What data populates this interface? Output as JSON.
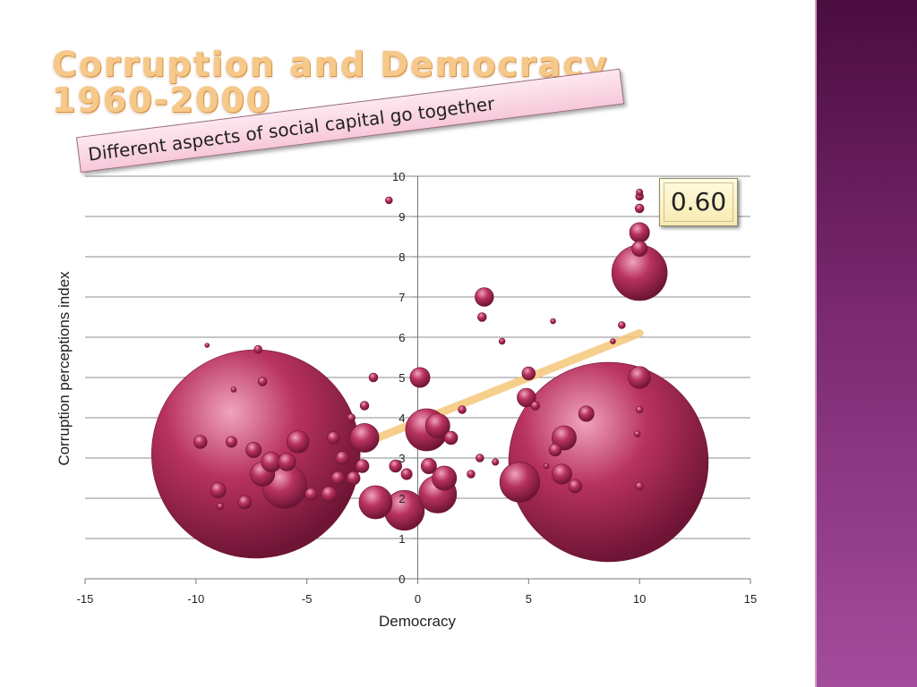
{
  "slide": {
    "title_line1": "Corruption and Democracy",
    "title_line2": "1960-2000",
    "banner": "Different aspects of social capital go together",
    "correlation": "0.60"
  },
  "colors": {
    "bubble": "#b8325f",
    "bubble_dark": "#6e1435",
    "bubble_light": "#f0a3bf",
    "trend": "#f5c77a",
    "sidebar": "#7a2870",
    "title": "#f6c98a"
  },
  "chart_data": {
    "type": "scatter",
    "title": "",
    "xlabel": "Democracy",
    "ylabel": "Corruption perceptions index",
    "xlim": [
      -15,
      15
    ],
    "ylim": [
      0,
      10
    ],
    "x_ticks": [
      -15,
      -10,
      -5,
      0,
      5,
      10,
      15
    ],
    "y_ticks": [
      0,
      1,
      2,
      3,
      4,
      5,
      6,
      7,
      8,
      9,
      10
    ],
    "grid": "horizontal",
    "trendline": {
      "x": [
        -10,
        10
      ],
      "y": [
        1.7,
        6.1
      ]
    },
    "points": [
      {
        "x": -7.3,
        "y": 3.1,
        "r": 4.7
      },
      {
        "x": 8.6,
        "y": 2.9,
        "r": 4.5
      },
      {
        "x": 10.0,
        "y": 7.6,
        "r": 1.25
      },
      {
        "x": -6.0,
        "y": 2.3,
        "r": 1.0
      },
      {
        "x": -1.9,
        "y": 1.9,
        "r": 0.75
      },
      {
        "x": -0.6,
        "y": 1.7,
        "r": 0.9
      },
      {
        "x": 0.9,
        "y": 2.1,
        "r": 0.85
      },
      {
        "x": 4.6,
        "y": 2.4,
        "r": 0.9
      },
      {
        "x": 0.4,
        "y": 3.7,
        "r": 0.95
      },
      {
        "x": -2.4,
        "y": 3.5,
        "r": 0.65
      },
      {
        "x": -5.4,
        "y": 3.4,
        "r": 0.5
      },
      {
        "x": -7.0,
        "y": 2.6,
        "r": 0.55
      },
      {
        "x": -6.6,
        "y": 2.9,
        "r": 0.45
      },
      {
        "x": -5.9,
        "y": 2.9,
        "r": 0.4
      },
      {
        "x": 6.6,
        "y": 3.5,
        "r": 0.55
      },
      {
        "x": 6.5,
        "y": 2.6,
        "r": 0.45
      },
      {
        "x": 7.6,
        "y": 4.1,
        "r": 0.35
      },
      {
        "x": 10.0,
        "y": 5.0,
        "r": 0.5
      },
      {
        "x": 10.0,
        "y": 8.6,
        "r": 0.45
      },
      {
        "x": 10.0,
        "y": 8.2,
        "r": 0.35
      },
      {
        "x": 10.0,
        "y": 9.2,
        "r": 0.2
      },
      {
        "x": 10.0,
        "y": 9.5,
        "r": 0.18
      },
      {
        "x": 10.0,
        "y": 9.6,
        "r": 0.15
      },
      {
        "x": 3.0,
        "y": 7.0,
        "r": 0.42
      },
      {
        "x": 2.9,
        "y": 6.5,
        "r": 0.2
      },
      {
        "x": 0.1,
        "y": 5.0,
        "r": 0.45
      },
      {
        "x": 5.0,
        "y": 5.1,
        "r": 0.3
      },
      {
        "x": 4.9,
        "y": 4.5,
        "r": 0.42
      },
      {
        "x": 5.3,
        "y": 4.3,
        "r": 0.2
      },
      {
        "x": 1.2,
        "y": 2.5,
        "r": 0.55
      },
      {
        "x": 0.5,
        "y": 2.8,
        "r": 0.35
      },
      {
        "x": 0.9,
        "y": 3.8,
        "r": 0.55
      },
      {
        "x": 1.5,
        "y": 3.5,
        "r": 0.3
      },
      {
        "x": -9.8,
        "y": 3.4,
        "r": 0.3
      },
      {
        "x": -8.4,
        "y": 3.4,
        "r": 0.25
      },
      {
        "x": -9.0,
        "y": 2.2,
        "r": 0.35
      },
      {
        "x": -7.8,
        "y": 1.9,
        "r": 0.3
      },
      {
        "x": -7.4,
        "y": 3.2,
        "r": 0.35
      },
      {
        "x": -7.0,
        "y": 4.9,
        "r": 0.2
      },
      {
        "x": -7.2,
        "y": 5.7,
        "r": 0.18
      },
      {
        "x": -8.9,
        "y": 1.8,
        "r": 0.15
      },
      {
        "x": -4.0,
        "y": 2.1,
        "r": 0.35
      },
      {
        "x": -3.6,
        "y": 2.5,
        "r": 0.3
      },
      {
        "x": -3.8,
        "y": 3.5,
        "r": 0.28
      },
      {
        "x": -3.4,
        "y": 3.0,
        "r": 0.3
      },
      {
        "x": -2.9,
        "y": 2.5,
        "r": 0.3
      },
      {
        "x": -2.5,
        "y": 2.8,
        "r": 0.3
      },
      {
        "x": -4.8,
        "y": 2.1,
        "r": 0.28
      },
      {
        "x": -3.0,
        "y": 4.0,
        "r": 0.18
      },
      {
        "x": -2.4,
        "y": 4.3,
        "r": 0.2
      },
      {
        "x": -2.0,
        "y": 5.0,
        "r": 0.2
      },
      {
        "x": -1.3,
        "y": 9.4,
        "r": 0.16
      },
      {
        "x": -1.0,
        "y": 2.8,
        "r": 0.28
      },
      {
        "x": -0.5,
        "y": 2.6,
        "r": 0.25
      },
      {
        "x": 2.0,
        "y": 4.2,
        "r": 0.18
      },
      {
        "x": 2.4,
        "y": 2.6,
        "r": 0.18
      },
      {
        "x": 3.8,
        "y": 5.9,
        "r": 0.14
      },
      {
        "x": 6.1,
        "y": 6.4,
        "r": 0.12
      },
      {
        "x": 6.2,
        "y": 3.2,
        "r": 0.28
      },
      {
        "x": 7.1,
        "y": 2.3,
        "r": 0.3
      },
      {
        "x": 9.2,
        "y": 6.3,
        "r": 0.16
      },
      {
        "x": 9.9,
        "y": 3.6,
        "r": 0.14
      },
      {
        "x": 10.0,
        "y": 4.2,
        "r": 0.16
      },
      {
        "x": 10.0,
        "y": 2.3,
        "r": 0.18
      },
      {
        "x": 8.8,
        "y": 5.9,
        "r": 0.12
      },
      {
        "x": -9.5,
        "y": 5.8,
        "r": 0.1
      },
      {
        "x": -8.3,
        "y": 4.7,
        "r": 0.12
      },
      {
        "x": 2.8,
        "y": 3.0,
        "r": 0.18
      },
      {
        "x": 3.5,
        "y": 2.9,
        "r": 0.15
      },
      {
        "x": 5.8,
        "y": 2.8,
        "r": 0.12
      }
    ]
  }
}
